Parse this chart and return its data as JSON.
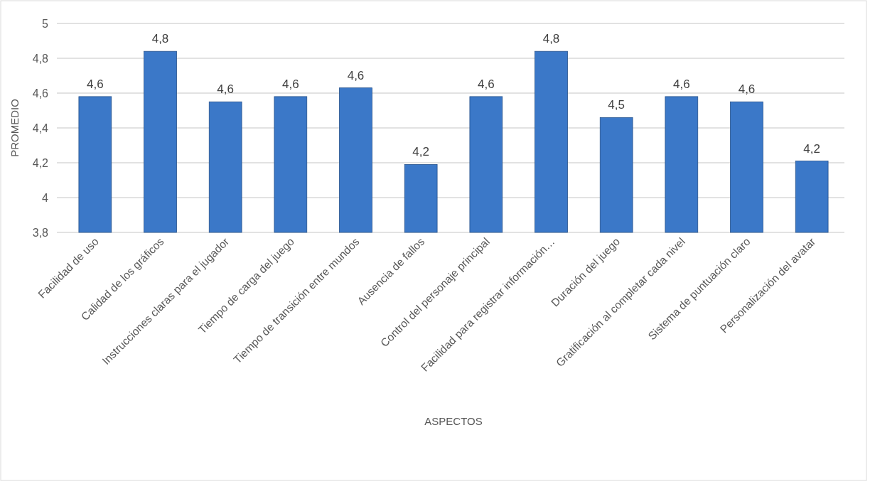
{
  "chart_data": {
    "type": "bar",
    "xlabel": "ASPECTOS",
    "ylabel": "PROMEDIO",
    "categories": [
      "Facilidad de uso",
      "Calidad de los gráficos",
      "Instrucciones claras para el jugador",
      "Tiempo de carga del juego",
      "Tiempo de transición entre mundos",
      "Ausencia de fallos",
      "Control del personaje principal",
      "Facilidad para registrar información…",
      "Duración del juego",
      "Gratificación al completar cada nivel",
      "Sistema de puntuación claro",
      "Personalización del avatar"
    ],
    "values": [
      4.58,
      4.84,
      4.55,
      4.58,
      4.63,
      4.19,
      4.58,
      4.84,
      4.46,
      4.58,
      4.55,
      4.21
    ],
    "value_labels": [
      "4,6",
      "4,8",
      "4,6",
      "4,6",
      "4,6",
      "4,2",
      "4,6",
      "4,8",
      "4,5",
      "4,6",
      "4,6",
      "4,2"
    ],
    "color": "#3b78c8",
    "ylim": [
      3.8,
      5
    ],
    "yticks": [
      {
        "value": 3.8,
        "label": "3,8"
      },
      {
        "value": 4,
        "label": "4"
      },
      {
        "value": 4.2,
        "label": "4,2"
      },
      {
        "value": 4.4,
        "label": "4,4"
      },
      {
        "value": 4.6,
        "label": "4,6"
      },
      {
        "value": 4.8,
        "label": "4,8"
      },
      {
        "value": 5,
        "label": "5"
      }
    ],
    "grid": "y"
  }
}
